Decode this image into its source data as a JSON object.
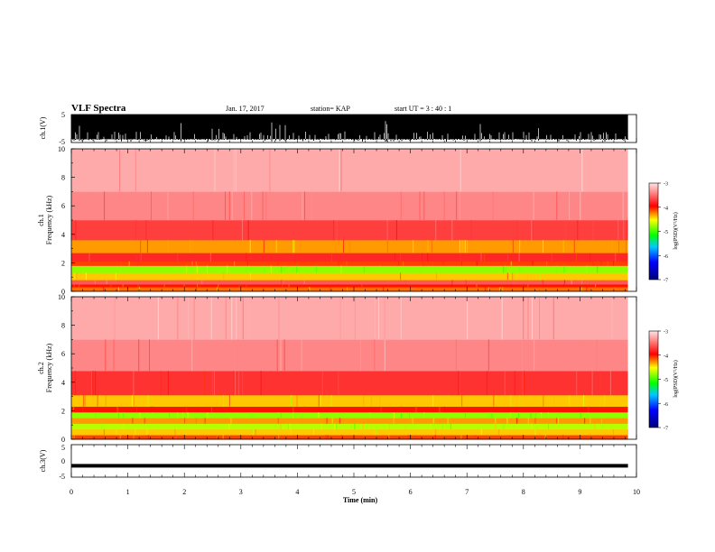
{
  "header": {
    "title": "VLF Spectra",
    "date": "Jan. 17, 2017",
    "station": "station= KAP",
    "start_ut": "start  UT =   3 : 40 : 1"
  },
  "chart_data": [
    {
      "type": "line",
      "panel": "ch1-waveform",
      "ylabel": "ch.1(V)",
      "ylim": [
        -5,
        5
      ],
      "yticks": [
        "5",
        "-5"
      ],
      "xlim": [
        0,
        10
      ],
      "series": [
        {
          "values": []
        }
      ]
    },
    {
      "type": "heatmap",
      "panel": "ch1-spectrogram",
      "ylabel": [
        "ch.1",
        "Frequency  (kHz)"
      ],
      "ylim": [
        0,
        10
      ],
      "yticks": [
        "10",
        "8",
        "6",
        "4",
        "2",
        "0"
      ],
      "xlim": [
        0,
        9.85
      ],
      "colorbar": {
        "label": "log(PSD)(V²/Hz)",
        "range": [
          -7,
          -3
        ],
        "ticks": [
          "-3",
          "-4",
          "-5",
          "-6",
          "-7"
        ]
      },
      "bands_khz": [
        {
          "from": 0.0,
          "to": 0.3,
          "level": -4.2
        },
        {
          "from": 0.3,
          "to": 0.5,
          "level": -4.0
        },
        {
          "from": 0.5,
          "to": 0.8,
          "level": -3.6
        },
        {
          "from": 0.8,
          "to": 1.3,
          "level": -4.4
        },
        {
          "from": 1.3,
          "to": 1.8,
          "level": -4.8
        },
        {
          "from": 1.8,
          "to": 2.1,
          "level": -4.1
        },
        {
          "from": 2.1,
          "to": 2.7,
          "level": -3.8
        },
        {
          "from": 2.7,
          "to": 3.6,
          "level": -4.3
        },
        {
          "from": 3.6,
          "to": 5.0,
          "level": -3.7
        },
        {
          "from": 5.0,
          "to": 7.0,
          "level": -3.4
        },
        {
          "from": 7.0,
          "to": 10.0,
          "level": -3.25
        }
      ]
    },
    {
      "type": "heatmap",
      "panel": "ch2-spectrogram",
      "ylabel": [
        "ch.2",
        "Frequency  (kHz)"
      ],
      "ylim": [
        0,
        10
      ],
      "yticks": [
        "10",
        "8",
        "6",
        "4",
        "2",
        "0"
      ],
      "xlim": [
        0,
        9.85
      ],
      "colorbar": {
        "label": "log(PSD)(V²/Hz)",
        "range": [
          -7,
          -3
        ],
        "ticks": [
          "-3",
          "-4",
          "-5",
          "-6",
          "-7"
        ]
      },
      "bands_khz": [
        {
          "from": 0.0,
          "to": 0.3,
          "level": -4.1
        },
        {
          "from": 0.3,
          "to": 0.7,
          "level": -4.4
        },
        {
          "from": 0.7,
          "to": 1.1,
          "level": -4.7
        },
        {
          "from": 1.1,
          "to": 1.5,
          "level": -4.3
        },
        {
          "from": 1.5,
          "to": 1.9,
          "level": -4.8
        },
        {
          "from": 1.9,
          "to": 2.3,
          "level": -4.0
        },
        {
          "from": 2.3,
          "to": 3.1,
          "level": -4.4
        },
        {
          "from": 3.1,
          "to": 4.8,
          "level": -3.75
        },
        {
          "from": 4.8,
          "to": 7.0,
          "level": -3.4
        },
        {
          "from": 7.0,
          "to": 10.0,
          "level": -3.25
        }
      ]
    },
    {
      "type": "line",
      "panel": "ch3-waveform",
      "ylabel": "ch.3(V)",
      "ylim": [
        -5,
        5
      ],
      "yticks": [
        "5",
        "0",
        "-5"
      ],
      "xlim": [
        0,
        9.85
      ],
      "series": [
        {
          "values": [
            -1.5
          ]
        }
      ]
    }
  ],
  "x_axis": {
    "label": "Time  (min)",
    "range": [
      0,
      10
    ],
    "ticks": [
      "0",
      "1",
      "2",
      "3",
      "4",
      "5",
      "6",
      "7",
      "8",
      "9",
      "10"
    ]
  },
  "colors": {
    "background": "#ffffff",
    "ink": "#000000",
    "colormap": [
      "#00007a",
      "#0000ff",
      "#00c8ff",
      "#00ff00",
      "#ffff00",
      "#ff0000",
      "#ffe6e6"
    ]
  }
}
